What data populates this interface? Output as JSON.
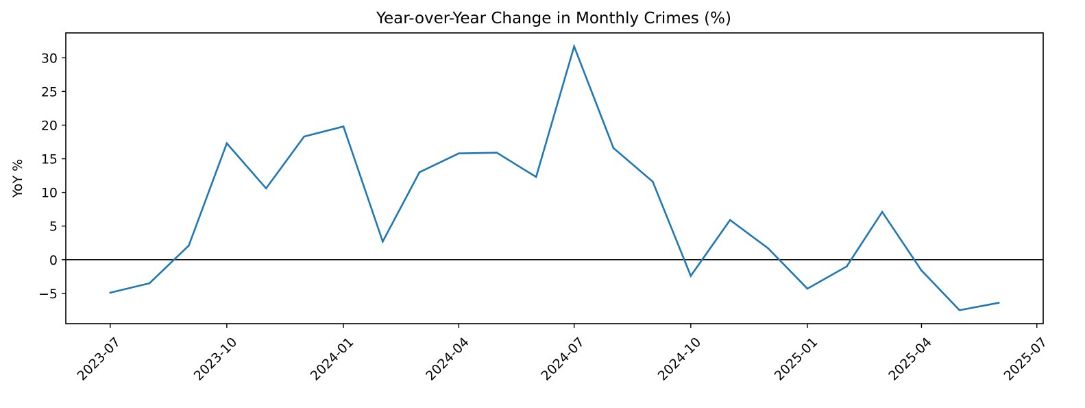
{
  "chart_data": {
    "type": "line",
    "title": "Year-over-Year Change in Monthly Crimes (%)",
    "xlabel": "",
    "ylabel": "YoY %",
    "x": [
      "2023-07",
      "2023-08",
      "2023-09",
      "2023-10",
      "2023-11",
      "2023-12",
      "2024-01",
      "2024-02",
      "2024-03",
      "2024-04",
      "2024-05",
      "2024-06",
      "2024-07",
      "2024-08",
      "2024-09",
      "2024-10",
      "2024-11",
      "2024-12",
      "2025-01",
      "2025-02",
      "2025-03",
      "2025-04",
      "2025-05",
      "2025-06"
    ],
    "series": [
      {
        "values": [
          -4.9,
          -3.5,
          2.1,
          17.3,
          10.6,
          18.3,
          19.8,
          2.7,
          13.0,
          15.8,
          15.9,
          12.3,
          31.7,
          16.6,
          11.6,
          -2.4,
          5.9,
          1.7,
          -4.3,
          -1.0,
          7.1,
          -1.6,
          -7.5,
          -6.4
        ],
        "color": "#1f77b4"
      }
    ],
    "xticks": [
      "2023-07",
      "2023-10",
      "2024-01",
      "2024-04",
      "2024-07",
      "2024-10",
      "2025-01",
      "2025-04",
      "2025-07"
    ],
    "yticks": [
      -5,
      0,
      5,
      10,
      15,
      20,
      25,
      30
    ],
    "xlim": [
      "2023-05-27",
      "2025-07-06"
    ],
    "ylim": [
      -9.5,
      33.7
    ],
    "reference_line": {
      "y": 0,
      "color": "#000000"
    },
    "grid": false,
    "legend": "none"
  }
}
